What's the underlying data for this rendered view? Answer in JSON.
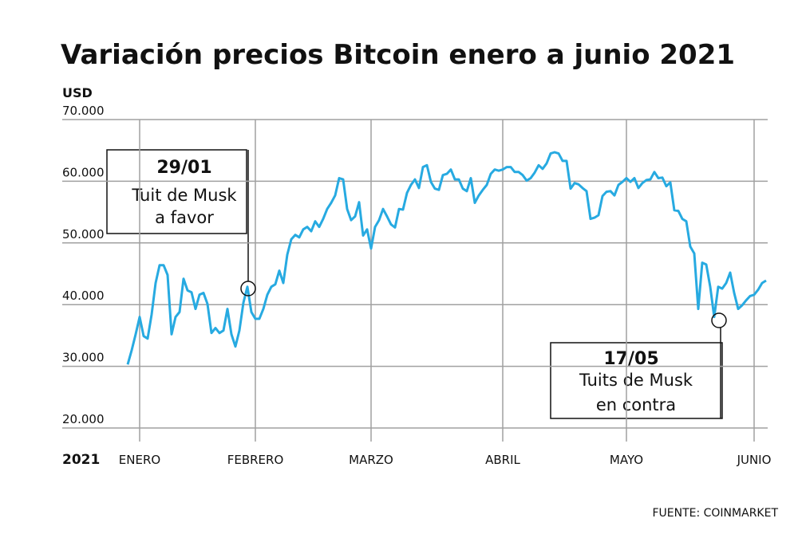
{
  "chart_data": {
    "type": "line",
    "title": "Variación precios Bitcoin enero a junio 2021",
    "y_axis_label": "USD",
    "x_axis_label": "2021",
    "source": "FUENTE: COINMARKET",
    "xlim": [
      0,
      160
    ],
    "xticks": [
      {
        "value": 3,
        "label": "ENERO"
      },
      {
        "value": 32,
        "label": "FEBRERO"
      },
      {
        "value": 61,
        "label": "MARZO"
      },
      {
        "value": 94,
        "label": "ABRIL"
      },
      {
        "value": 125,
        "label": "MAYO"
      },
      {
        "value": 157,
        "label": "JUNIO"
      }
    ],
    "ylim": [
      20000,
      70000
    ],
    "yticks": [
      {
        "value": 20000,
        "label": "20.000"
      },
      {
        "value": 30000,
        "label": "30.000"
      },
      {
        "value": 40000,
        "label": "40.000"
      },
      {
        "value": 50000,
        "label": "50.000"
      },
      {
        "value": 60000,
        "label": "60.000"
      },
      {
        "value": 70000,
        "label": "70.000"
      }
    ],
    "grid": true,
    "series": [
      {
        "color": "#27aae1",
        "values": [
          30300,
          32600,
          35200,
          38000,
          34900,
          34500,
          38400,
          43500,
          46400,
          46400,
          44800,
          35200,
          38000,
          38800,
          44200,
          42300,
          42000,
          39300,
          41600,
          41900,
          40100,
          35400,
          36200,
          35400,
          35800,
          39300,
          35200,
          33200,
          35800,
          40300,
          42900,
          38800,
          37700,
          37700,
          39300,
          41600,
          42900,
          43300,
          45500,
          43500,
          48100,
          50600,
          51300,
          50900,
          52200,
          52600,
          51900,
          53500,
          52600,
          53900,
          55500,
          56500,
          57700,
          60500,
          60300,
          55500,
          53700,
          54300,
          56600,
          51200,
          52200,
          49100,
          52600,
          53700,
          55500,
          54300,
          53000,
          52500,
          55500,
          55400,
          58100,
          59400,
          60300,
          58900,
          62300,
          62600,
          59900,
          58800,
          58600,
          61000,
          61200,
          61900,
          60300,
          60300,
          58800,
          58400,
          60500,
          56500,
          57700,
          58600,
          59400,
          61200,
          61900,
          61700,
          61900,
          62300,
          62300,
          61500,
          61500,
          61000,
          60100,
          60500,
          61400,
          62600,
          62000,
          62900,
          64500,
          64700,
          64500,
          63300,
          63300,
          58800,
          59700,
          59500,
          58900,
          58400,
          53900,
          54100,
          54500,
          57600,
          58300,
          58400,
          57700,
          59400,
          59900,
          60500,
          59900,
          60500,
          58900,
          59700,
          60200,
          60300,
          61500,
          60500,
          60600,
          59200,
          59800,
          55300,
          55200,
          53900,
          53500,
          49400,
          48300,
          39300,
          46800,
          46500,
          42900,
          38000,
          42900,
          42600,
          43500,
          45200,
          41900,
          39300,
          39900,
          40700,
          41400,
          41600,
          42400,
          43500,
          43900
        ]
      }
    ],
    "annotations": [
      {
        "date": "29/01",
        "line1": "Tuit de Musk",
        "line2": "a favor"
      },
      {
        "date": "17/05",
        "line1": "Tuits de Musk",
        "line2": "en contra"
      }
    ]
  }
}
